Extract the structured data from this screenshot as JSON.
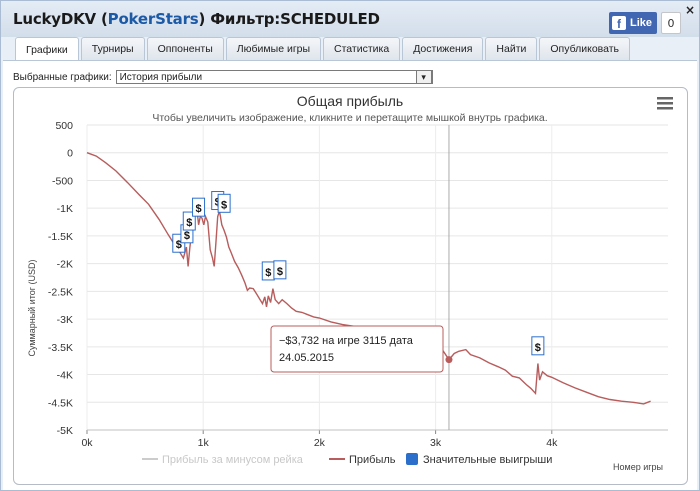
{
  "window": {
    "title_player": "LuckyDKV",
    "title_site": "PokerStars",
    "title_filter": "Фильтр:SCHEDULED"
  },
  "facebook": {
    "like_label": "Like",
    "count": "0"
  },
  "close_label": "×",
  "tabs": [
    {
      "label": "Графики",
      "active": true
    },
    {
      "label": "Турниры"
    },
    {
      "label": "Оппоненты"
    },
    {
      "label": "Любимые игры"
    },
    {
      "label": "Статистика"
    },
    {
      "label": "Достижения"
    },
    {
      "label": "Найти"
    },
    {
      "label": "Опубликовать"
    }
  ],
  "selector": {
    "label": "Выбранные графики:",
    "value": "История прибыли"
  },
  "colors": {
    "profit_line": "#b85c5c",
    "rake_line": "#cccccc",
    "big_wins": "#2b6fcb",
    "crosshair": "#aaaaaa"
  },
  "icons": {
    "menu": "hamburger-menu-icon",
    "marker": "dollar-flag-icon"
  },
  "chart_data": {
    "type": "line",
    "title": "Общая прибыль",
    "subtitle": "Чтобы увеличить изображение, кликните и перетащите мышкой внутрь графика.",
    "ylabel": "Суммарный итог (USD)",
    "xlabel": "Номер игры",
    "xlim": [
      0,
      5000
    ],
    "ylim": [
      -5000,
      500
    ],
    "x_ticks": [
      {
        "value": 0,
        "label": "0k"
      },
      {
        "value": 1000,
        "label": "1k"
      },
      {
        "value": 2000,
        "label": "2k"
      },
      {
        "value": 3000,
        "label": "3k"
      },
      {
        "value": 4000,
        "label": "4k"
      }
    ],
    "y_ticks": [
      {
        "value": 500,
        "label": "500"
      },
      {
        "value": 0,
        "label": "0"
      },
      {
        "value": -500,
        "label": "-500"
      },
      {
        "value": -1000,
        "label": "-1K"
      },
      {
        "value": -1500,
        "label": "-1.5K"
      },
      {
        "value": -2000,
        "label": "-2K"
      },
      {
        "value": -2500,
        "label": "-2.5K"
      },
      {
        "value": -3000,
        "label": "-3K"
      },
      {
        "value": -3500,
        "label": "-3.5K"
      },
      {
        "value": -4000,
        "label": "-4K"
      },
      {
        "value": -4500,
        "label": "-4.5K"
      },
      {
        "value": -5000,
        "label": "-5K"
      }
    ],
    "grid": true,
    "legend_position": "bottom",
    "series": [
      {
        "name": "Прибыль",
        "points": [
          [
            0,
            0
          ],
          [
            80,
            -60
          ],
          [
            160,
            -180
          ],
          [
            250,
            -330
          ],
          [
            350,
            -540
          ],
          [
            450,
            -760
          ],
          [
            530,
            -930
          ],
          [
            620,
            -1200
          ],
          [
            700,
            -1480
          ],
          [
            760,
            -1680
          ],
          [
            800,
            -1800
          ],
          [
            830,
            -1900
          ],
          [
            855,
            -1700
          ],
          [
            870,
            -2050
          ],
          [
            885,
            -1720
          ],
          [
            905,
            -1350
          ],
          [
            925,
            -1100
          ],
          [
            945,
            -1000
          ],
          [
            960,
            -1300
          ],
          [
            975,
            -1150
          ],
          [
            990,
            -1180
          ],
          [
            1005,
            -1300
          ],
          [
            1020,
            -1150
          ],
          [
            1040,
            -1250
          ],
          [
            1060,
            -1750
          ],
          [
            1080,
            -1900
          ],
          [
            1095,
            -2050
          ],
          [
            1110,
            -1600
          ],
          [
            1125,
            -1150
          ],
          [
            1140,
            -1050
          ],
          [
            1160,
            -1300
          ],
          [
            1180,
            -1400
          ],
          [
            1200,
            -1520
          ],
          [
            1220,
            -1700
          ],
          [
            1240,
            -1800
          ],
          [
            1270,
            -1960
          ],
          [
            1300,
            -2070
          ],
          [
            1330,
            -2200
          ],
          [
            1360,
            -2350
          ],
          [
            1380,
            -2480
          ],
          [
            1400,
            -2440
          ],
          [
            1430,
            -2450
          ],
          [
            1460,
            -2550
          ],
          [
            1490,
            -2650
          ],
          [
            1510,
            -2720
          ],
          [
            1530,
            -2600
          ],
          [
            1545,
            -2780
          ],
          [
            1560,
            -2580
          ],
          [
            1580,
            -2700
          ],
          [
            1600,
            -2450
          ],
          [
            1620,
            -2650
          ],
          [
            1650,
            -2720
          ],
          [
            1680,
            -2650
          ],
          [
            1720,
            -2720
          ],
          [
            1760,
            -2800
          ],
          [
            1800,
            -2860
          ],
          [
            1850,
            -2880
          ],
          [
            1900,
            -2920
          ],
          [
            1950,
            -2960
          ],
          [
            2000,
            -2980
          ],
          [
            2100,
            -3050
          ],
          [
            2200,
            -3100
          ],
          [
            2300,
            -3130
          ],
          [
            2400,
            -3160
          ],
          [
            2500,
            -3190
          ],
          [
            2600,
            -3220
          ],
          [
            2700,
            -3260
          ],
          [
            2800,
            -3300
          ],
          [
            2900,
            -3380
          ],
          [
            3000,
            -3480
          ],
          [
            3060,
            -3560
          ],
          [
            3115,
            -3732
          ],
          [
            3160,
            -3620
          ],
          [
            3200,
            -3580
          ],
          [
            3260,
            -3550
          ],
          [
            3300,
            -3640
          ],
          [
            3380,
            -3700
          ],
          [
            3460,
            -3790
          ],
          [
            3540,
            -3860
          ],
          [
            3600,
            -3920
          ],
          [
            3660,
            -4030
          ],
          [
            3720,
            -4060
          ],
          [
            3780,
            -4180
          ],
          [
            3820,
            -4250
          ],
          [
            3860,
            -4340
          ],
          [
            3880,
            -3800
          ],
          [
            3895,
            -4100
          ],
          [
            3920,
            -3950
          ],
          [
            3960,
            -4020
          ],
          [
            4000,
            -4050
          ],
          [
            4100,
            -4150
          ],
          [
            4200,
            -4240
          ],
          [
            4300,
            -4320
          ],
          [
            4400,
            -4400
          ],
          [
            4500,
            -4450
          ],
          [
            4600,
            -4480
          ],
          [
            4700,
            -4500
          ],
          [
            4790,
            -4530
          ],
          [
            4850,
            -4480
          ]
        ]
      }
    ],
    "legend": [
      {
        "name": "Прибыль за минусом рейка"
      },
      {
        "name": "Прибыль"
      },
      {
        "name": "Значительные выигрыши"
      }
    ],
    "big_wins": [
      {
        "x": 790,
        "y": -1650
      },
      {
        "x": 860,
        "y": -1480
      },
      {
        "x": 880,
        "y": -1250
      },
      {
        "x": 960,
        "y": -1000
      },
      {
        "x": 1125,
        "y": -880
      },
      {
        "x": 1180,
        "y": -930
      },
      {
        "x": 1560,
        "y": -2150
      },
      {
        "x": 1660,
        "y": -2130
      },
      {
        "x": 3880,
        "y": -3500
      }
    ],
    "tooltip": {
      "game": 3115,
      "value": -3732,
      "line1": "−$3,732 на игре 3115 дата",
      "line2": "24.05.2015"
    }
  }
}
